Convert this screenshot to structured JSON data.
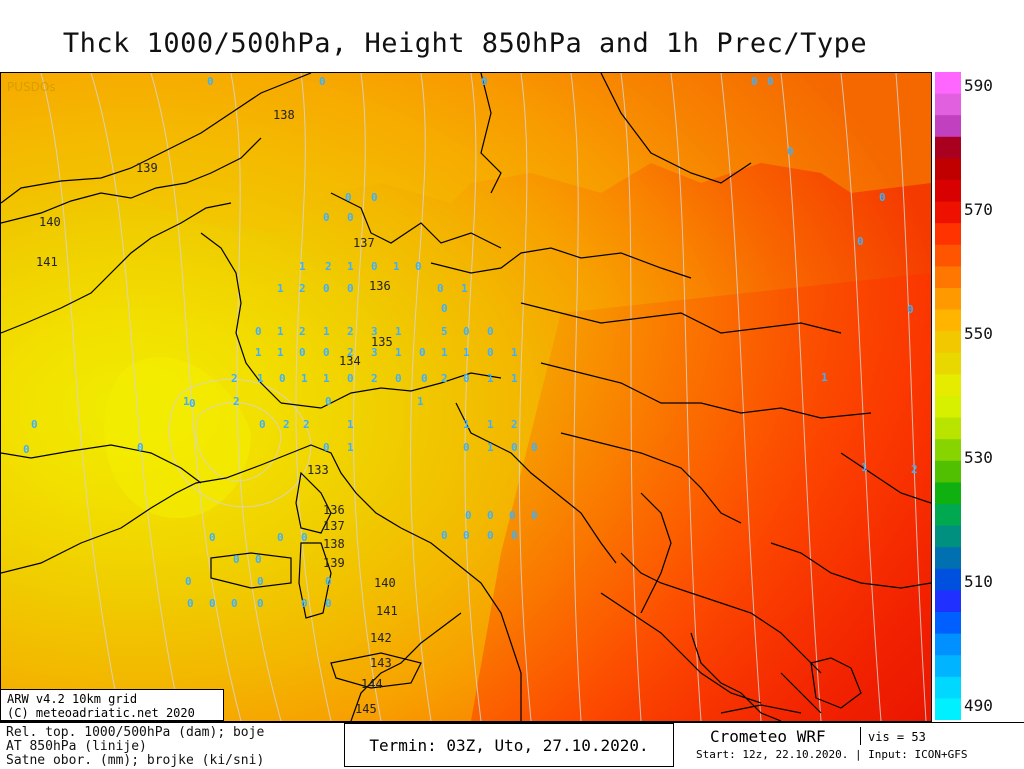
{
  "title": "Thck 1000/500hPa, Height 850hPa and 1h Prec/Type",
  "map": {
    "watermark": "PUSDOs",
    "height_labels": [
      {
        "text": "139"
      },
      {
        "text": "140"
      },
      {
        "text": "141"
      },
      {
        "text": "138"
      },
      {
        "text": "137"
      },
      {
        "text": "136"
      },
      {
        "text": "135"
      },
      {
        "text": "134"
      },
      {
        "text": "133"
      },
      {
        "text": "136"
      },
      {
        "text": "137"
      },
      {
        "text": "138"
      },
      {
        "text": "139"
      },
      {
        "text": "140"
      },
      {
        "text": "141"
      },
      {
        "text": "142"
      },
      {
        "text": "143"
      },
      {
        "text": "144"
      },
      {
        "text": "145"
      }
    ],
    "precip_values": [
      "0",
      "0",
      "0",
      "0",
      "0",
      "0",
      "0",
      "0",
      "0",
      "0",
      "0",
      "0",
      "0",
      "0",
      "0",
      "0",
      "1",
      "2",
      "1",
      "0",
      "1",
      "0",
      "0",
      "1",
      "1",
      "2",
      "0",
      "0",
      "0",
      "0",
      "1",
      "2",
      "1",
      "2",
      "3",
      "1",
      "5",
      "0",
      "0",
      "1",
      "1",
      "0",
      "0",
      "2",
      "3",
      "1",
      "0",
      "1",
      "1",
      "0",
      "1",
      "2",
      "1",
      "0",
      "1",
      "1",
      "0",
      "2",
      "0",
      "0",
      "2",
      "0",
      "1",
      "1",
      "1",
      "2",
      "0",
      "2",
      "2",
      "0",
      "1",
      "1",
      "1",
      "1",
      "2",
      "0",
      "1",
      "0",
      "1",
      "0",
      "0",
      "1",
      "1",
      "0",
      "2",
      "0",
      "0",
      "0",
      "0",
      "0",
      "0",
      "0",
      "0",
      "0",
      "0",
      "0",
      "0",
      "0",
      "0",
      "0",
      "0",
      "0",
      "0",
      "0",
      "0",
      "0",
      "0",
      "1",
      "1",
      "1",
      "0",
      "0",
      "0"
    ]
  },
  "colorscale": {
    "ticks": [
      "590",
      "570",
      "550",
      "530",
      "510",
      "490"
    ],
    "colors": [
      "#ff66ff",
      "#e060e0",
      "#c040c0",
      "#aa0020",
      "#c00000",
      "#d80000",
      "#ee1100",
      "#ff3300",
      "#ff5500",
      "#ff7700",
      "#ff9900",
      "#ffb400",
      "#f2c800",
      "#e8d800",
      "#e6ec00",
      "#d7f000",
      "#b8e400",
      "#88d400",
      "#50c000",
      "#10b010",
      "#00a850",
      "#009080",
      "#0070b0",
      "#0050e0",
      "#2030ff",
      "#0060ff",
      "#0090ff",
      "#00b4ff",
      "#00d8ff",
      "#00f0ff"
    ]
  },
  "infobox": {
    "line1": "ARW v4.2 10km grid",
    "line2": "(C) meteoadriatic.net 2020"
  },
  "footer": {
    "legend_line1": "Rel. top. 1000/500hPa (dam); boje",
    "legend_line2": "AT 850hPa (linije)",
    "legend_line3": "Satne obor. (mm); brojke (ki/sni)",
    "termin": "Termin: 03Z, Uto, 27.10.2020.",
    "brand": "Crometeo WRF",
    "vis": "vis = 53",
    "start": "Start: 12z, 22.10.2020. | Input: ICON+GFS"
  }
}
